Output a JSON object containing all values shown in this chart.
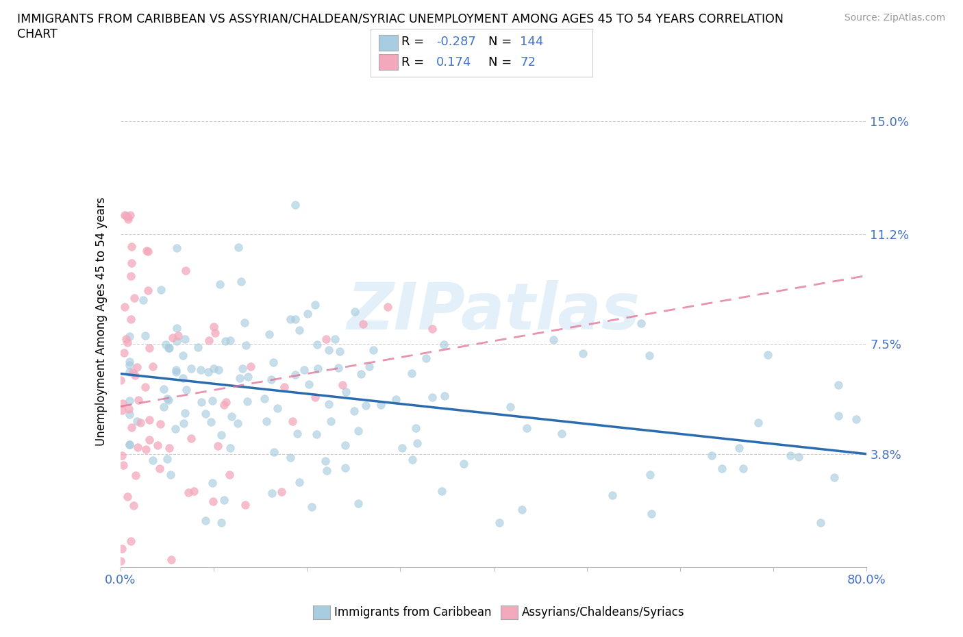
{
  "title_line1": "IMMIGRANTS FROM CARIBBEAN VS ASSYRIAN/CHALDEAN/SYRIAC UNEMPLOYMENT AMONG AGES 45 TO 54 YEARS CORRELATION",
  "title_line2": "CHART",
  "source": "Source: ZipAtlas.com",
  "ylabel": "Unemployment Among Ages 45 to 54 years",
  "xlim": [
    0.0,
    0.8
  ],
  "ylim": [
    0.0,
    0.165
  ],
  "yticks": [
    0.038,
    0.075,
    0.112,
    0.15
  ],
  "yticklabels": [
    "3.8%",
    "7.5%",
    "11.2%",
    "15.0%"
  ],
  "blue_R": -0.287,
  "blue_N": 144,
  "pink_R": 0.174,
  "pink_N": 72,
  "blue_color": "#a8cce0",
  "pink_color": "#f4a8bb",
  "blue_line_color": "#2b6cb0",
  "pink_line_color": "#e07090",
  "tick_color": "#4472c4",
  "axis_color": "#4472c4",
  "legend_label_blue": "Immigrants from Caribbean",
  "legend_label_pink": "Assyrians/Chaldeans/Syriacs",
  "watermark": "ZIPatlas",
  "blue_trend_x": [
    0.0,
    0.8
  ],
  "blue_trend_y": [
    0.065,
    0.038
  ],
  "pink_trend_x": [
    0.0,
    0.8
  ],
  "pink_trend_y": [
    0.054,
    0.098
  ]
}
